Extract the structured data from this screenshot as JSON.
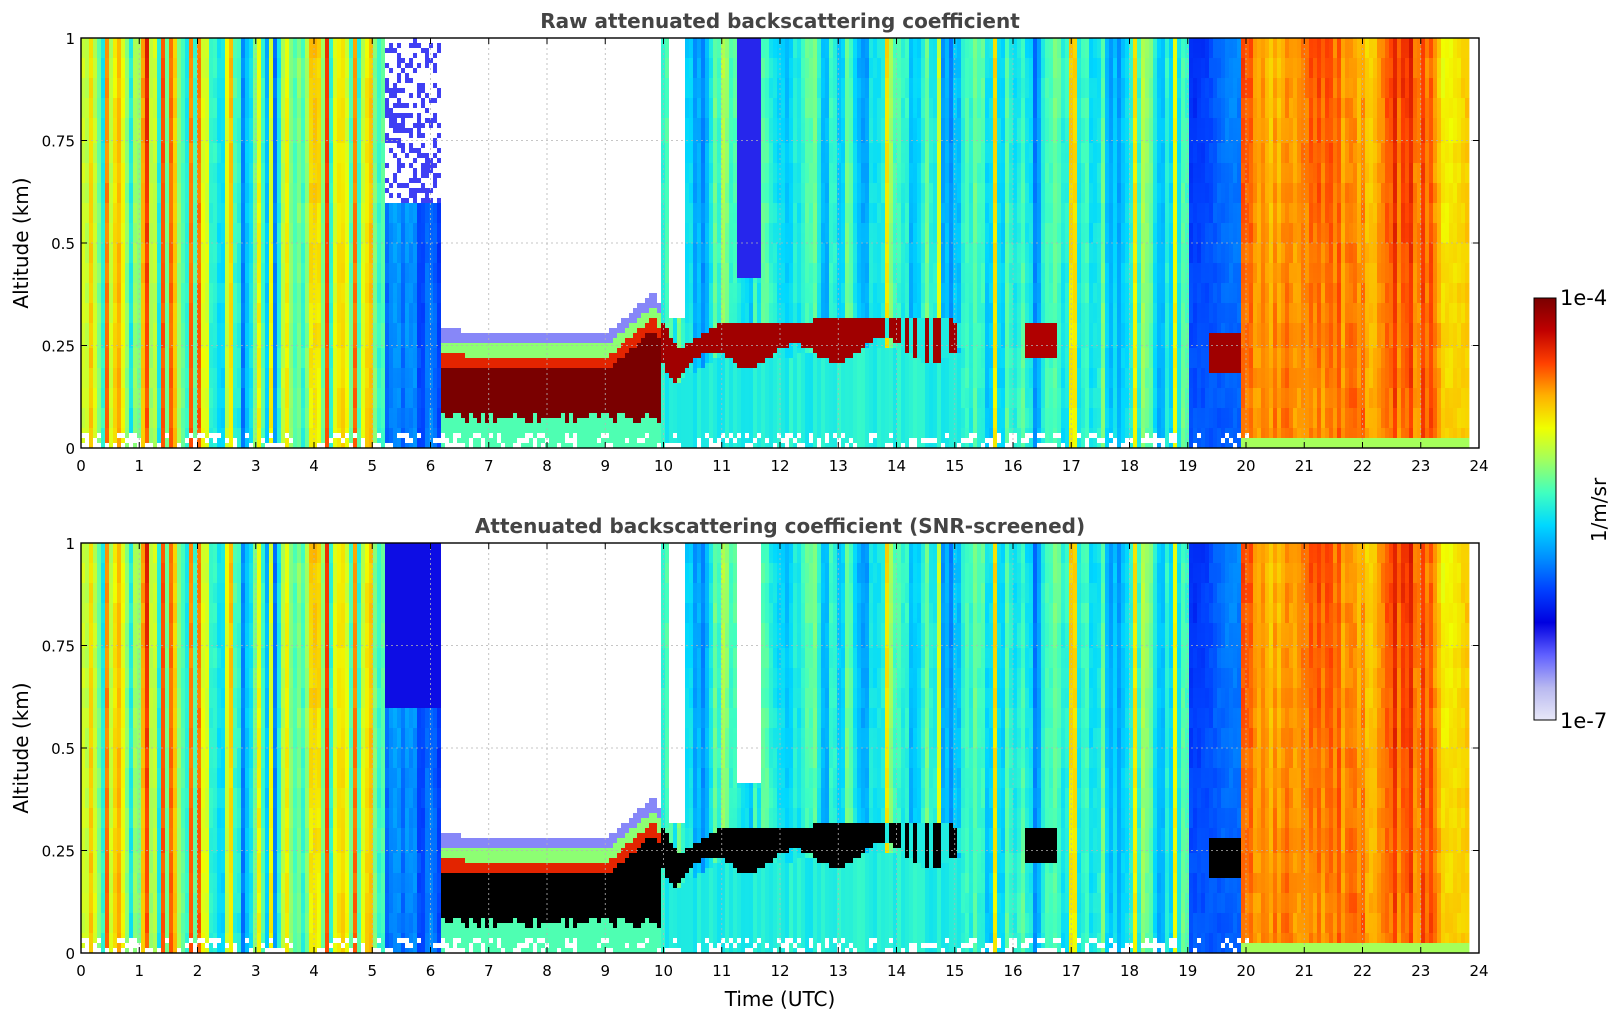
{
  "chart_data": [
    {
      "type": "heatmap",
      "title": "Raw attenuated backscattering coefficient",
      "xlabel": "",
      "ylabel": "Altitude (km)",
      "xlim": [
        0,
        24
      ],
      "ylim": [
        0,
        1
      ],
      "x_ticks": [
        "0",
        "1",
        "2",
        "3",
        "4",
        "5",
        "6",
        "7",
        "8",
        "9",
        "10",
        "11",
        "12",
        "13",
        "14",
        "15",
        "16",
        "17",
        "18",
        "19",
        "20",
        "21",
        "22",
        "23",
        "24"
      ],
      "y_ticks": [
        "0",
        "0.25",
        "0.5",
        "0.75",
        "1"
      ],
      "grid": true,
      "features": {
        "dense_layer_top_km": [
          [
            6.2,
            0.24
          ],
          [
            7,
            0.23
          ],
          [
            8,
            0.23
          ],
          [
            9,
            0.23
          ],
          [
            9.8,
            0.33
          ],
          [
            10.2,
            0.22
          ],
          [
            11,
            0.29
          ],
          [
            12,
            0.28
          ],
          [
            13,
            0.3
          ],
          [
            14,
            0.3
          ],
          [
            15,
            0.29
          ]
        ],
        "clear_gap_hours": [
          6.2,
          9.9
        ],
        "high_signal_block_hours": [
          19.9,
          23.8
        ]
      }
    },
    {
      "type": "heatmap",
      "title": "Attenuated backscattering coefficient (SNR-screened)",
      "xlabel": "Time (UTC)",
      "ylabel": "Altitude (km)",
      "xlim": [
        0,
        24
      ],
      "ylim": [
        0,
        1
      ],
      "x_ticks": [
        "0",
        "1",
        "2",
        "3",
        "4",
        "5",
        "6",
        "7",
        "8",
        "9",
        "10",
        "11",
        "12",
        "13",
        "14",
        "15",
        "16",
        "17",
        "18",
        "19",
        "20",
        "21",
        "22",
        "23",
        "24"
      ],
      "y_ticks": [
        "0",
        "0.25",
        "0.5",
        "0.75",
        "1"
      ],
      "grid": true
    }
  ],
  "colorbar": {
    "max_label": "1e-4",
    "min_label": "1e-7",
    "unit_label": "1/m/sr",
    "colormap": [
      "#e8e8f8",
      "#b8b8f0",
      "#6060ff",
      "#0000e0",
      "#0040ff",
      "#0090ff",
      "#00d8ff",
      "#40ffc0",
      "#a0ff60",
      "#f0ff00",
      "#ffb000",
      "#ff4000",
      "#c00000",
      "#7a0000"
    ]
  }
}
